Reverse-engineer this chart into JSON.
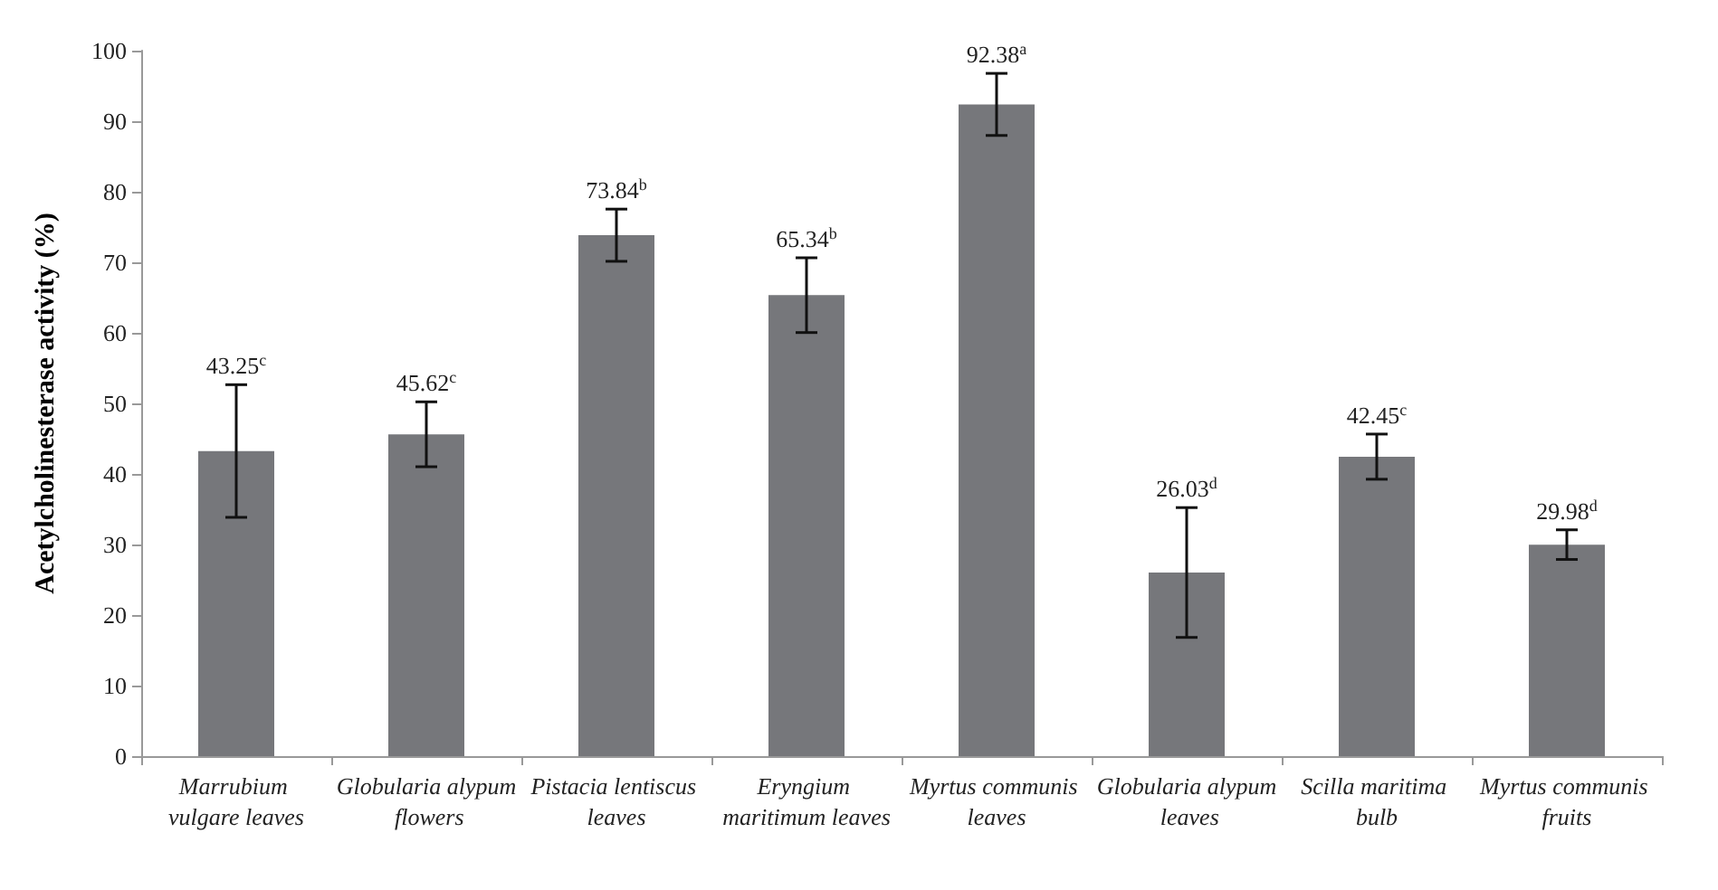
{
  "chart_data": {
    "type": "bar",
    "ylabel": "Acetylcholinesterase activity (%)",
    "categories": [
      "Marrubium vulgare leaves",
      "Globularia alypum flowers",
      "Pistacia lentiscus leaves",
      "Eryngium maritimum leaves",
      "Myrtus communis leaves",
      "Globularia alypum leaves",
      "Scilla maritima bulb",
      "Myrtus communis fruits"
    ],
    "values": [
      43.25,
      45.62,
      73.84,
      65.34,
      92.38,
      26.03,
      42.45,
      29.98
    ],
    "errors": [
      9.4,
      4.6,
      3.7,
      5.3,
      4.4,
      9.2,
      3.2,
      2.1
    ],
    "value_labels": [
      "43.25$^{c}$",
      "45.62$^{c}$",
      "73.84$^{b}$",
      "65.34$^{b}$",
      "92.38$^{a}$",
      "26.03$^{d}$",
      "42.45$^{c}$",
      "29.98$^{d}$"
    ],
    "color": "#76777b",
    "ylim": [
      0,
      100
    ],
    "yticks": [
      0,
      10,
      20,
      30,
      40,
      50,
      60,
      70,
      80,
      90,
      100
    ],
    "grid": false
  }
}
